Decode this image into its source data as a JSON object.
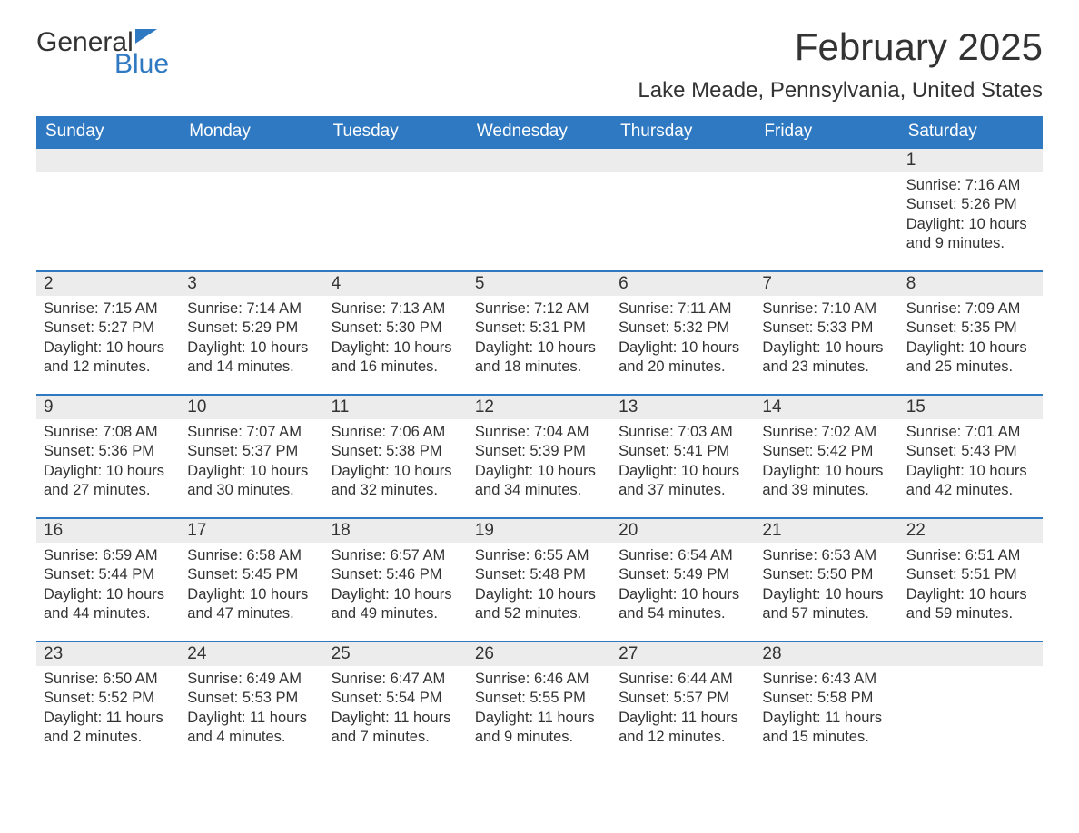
{
  "logo": {
    "word1": "General",
    "word2": "Blue",
    "brand_color": "#2f79c2"
  },
  "title": "February 2025",
  "location": "Lake Meade, Pennsylvania, United States",
  "colors": {
    "header_bg": "#2f79c2",
    "header_text": "#ffffff",
    "daynum_bg": "#ececec",
    "row_border": "#2f79c2",
    "text": "#333333",
    "background": "#ffffff"
  },
  "font": {
    "family": "Arial",
    "title_size_pt": 32,
    "location_size_pt": 18,
    "header_size_pt": 14,
    "body_size_pt": 12
  },
  "dayHeaders": [
    "Sunday",
    "Monday",
    "Tuesday",
    "Wednesday",
    "Thursday",
    "Friday",
    "Saturday"
  ],
  "weeks": [
    [
      null,
      null,
      null,
      null,
      null,
      null,
      {
        "n": "1",
        "sunrise": "Sunrise: 7:16 AM",
        "sunset": "Sunset: 5:26 PM",
        "daylight": "Daylight: 10 hours and 9 minutes."
      }
    ],
    [
      {
        "n": "2",
        "sunrise": "Sunrise: 7:15 AM",
        "sunset": "Sunset: 5:27 PM",
        "daylight": "Daylight: 10 hours and 12 minutes."
      },
      {
        "n": "3",
        "sunrise": "Sunrise: 7:14 AM",
        "sunset": "Sunset: 5:29 PM",
        "daylight": "Daylight: 10 hours and 14 minutes."
      },
      {
        "n": "4",
        "sunrise": "Sunrise: 7:13 AM",
        "sunset": "Sunset: 5:30 PM",
        "daylight": "Daylight: 10 hours and 16 minutes."
      },
      {
        "n": "5",
        "sunrise": "Sunrise: 7:12 AM",
        "sunset": "Sunset: 5:31 PM",
        "daylight": "Daylight: 10 hours and 18 minutes."
      },
      {
        "n": "6",
        "sunrise": "Sunrise: 7:11 AM",
        "sunset": "Sunset: 5:32 PM",
        "daylight": "Daylight: 10 hours and 20 minutes."
      },
      {
        "n": "7",
        "sunrise": "Sunrise: 7:10 AM",
        "sunset": "Sunset: 5:33 PM",
        "daylight": "Daylight: 10 hours and 23 minutes."
      },
      {
        "n": "8",
        "sunrise": "Sunrise: 7:09 AM",
        "sunset": "Sunset: 5:35 PM",
        "daylight": "Daylight: 10 hours and 25 minutes."
      }
    ],
    [
      {
        "n": "9",
        "sunrise": "Sunrise: 7:08 AM",
        "sunset": "Sunset: 5:36 PM",
        "daylight": "Daylight: 10 hours and 27 minutes."
      },
      {
        "n": "10",
        "sunrise": "Sunrise: 7:07 AM",
        "sunset": "Sunset: 5:37 PM",
        "daylight": "Daylight: 10 hours and 30 minutes."
      },
      {
        "n": "11",
        "sunrise": "Sunrise: 7:06 AM",
        "sunset": "Sunset: 5:38 PM",
        "daylight": "Daylight: 10 hours and 32 minutes."
      },
      {
        "n": "12",
        "sunrise": "Sunrise: 7:04 AM",
        "sunset": "Sunset: 5:39 PM",
        "daylight": "Daylight: 10 hours and 34 minutes."
      },
      {
        "n": "13",
        "sunrise": "Sunrise: 7:03 AM",
        "sunset": "Sunset: 5:41 PM",
        "daylight": "Daylight: 10 hours and 37 minutes."
      },
      {
        "n": "14",
        "sunrise": "Sunrise: 7:02 AM",
        "sunset": "Sunset: 5:42 PM",
        "daylight": "Daylight: 10 hours and 39 minutes."
      },
      {
        "n": "15",
        "sunrise": "Sunrise: 7:01 AM",
        "sunset": "Sunset: 5:43 PM",
        "daylight": "Daylight: 10 hours and 42 minutes."
      }
    ],
    [
      {
        "n": "16",
        "sunrise": "Sunrise: 6:59 AM",
        "sunset": "Sunset: 5:44 PM",
        "daylight": "Daylight: 10 hours and 44 minutes."
      },
      {
        "n": "17",
        "sunrise": "Sunrise: 6:58 AM",
        "sunset": "Sunset: 5:45 PM",
        "daylight": "Daylight: 10 hours and 47 minutes."
      },
      {
        "n": "18",
        "sunrise": "Sunrise: 6:57 AM",
        "sunset": "Sunset: 5:46 PM",
        "daylight": "Daylight: 10 hours and 49 minutes."
      },
      {
        "n": "19",
        "sunrise": "Sunrise: 6:55 AM",
        "sunset": "Sunset: 5:48 PM",
        "daylight": "Daylight: 10 hours and 52 minutes."
      },
      {
        "n": "20",
        "sunrise": "Sunrise: 6:54 AM",
        "sunset": "Sunset: 5:49 PM",
        "daylight": "Daylight: 10 hours and 54 minutes."
      },
      {
        "n": "21",
        "sunrise": "Sunrise: 6:53 AM",
        "sunset": "Sunset: 5:50 PM",
        "daylight": "Daylight: 10 hours and 57 minutes."
      },
      {
        "n": "22",
        "sunrise": "Sunrise: 6:51 AM",
        "sunset": "Sunset: 5:51 PM",
        "daylight": "Daylight: 10 hours and 59 minutes."
      }
    ],
    [
      {
        "n": "23",
        "sunrise": "Sunrise: 6:50 AM",
        "sunset": "Sunset: 5:52 PM",
        "daylight": "Daylight: 11 hours and 2 minutes."
      },
      {
        "n": "24",
        "sunrise": "Sunrise: 6:49 AM",
        "sunset": "Sunset: 5:53 PM",
        "daylight": "Daylight: 11 hours and 4 minutes."
      },
      {
        "n": "25",
        "sunrise": "Sunrise: 6:47 AM",
        "sunset": "Sunset: 5:54 PM",
        "daylight": "Daylight: 11 hours and 7 minutes."
      },
      {
        "n": "26",
        "sunrise": "Sunrise: 6:46 AM",
        "sunset": "Sunset: 5:55 PM",
        "daylight": "Daylight: 11 hours and 9 minutes."
      },
      {
        "n": "27",
        "sunrise": "Sunrise: 6:44 AM",
        "sunset": "Sunset: 5:57 PM",
        "daylight": "Daylight: 11 hours and 12 minutes."
      },
      {
        "n": "28",
        "sunrise": "Sunrise: 6:43 AM",
        "sunset": "Sunset: 5:58 PM",
        "daylight": "Daylight: 11 hours and 15 minutes."
      },
      null
    ]
  ]
}
